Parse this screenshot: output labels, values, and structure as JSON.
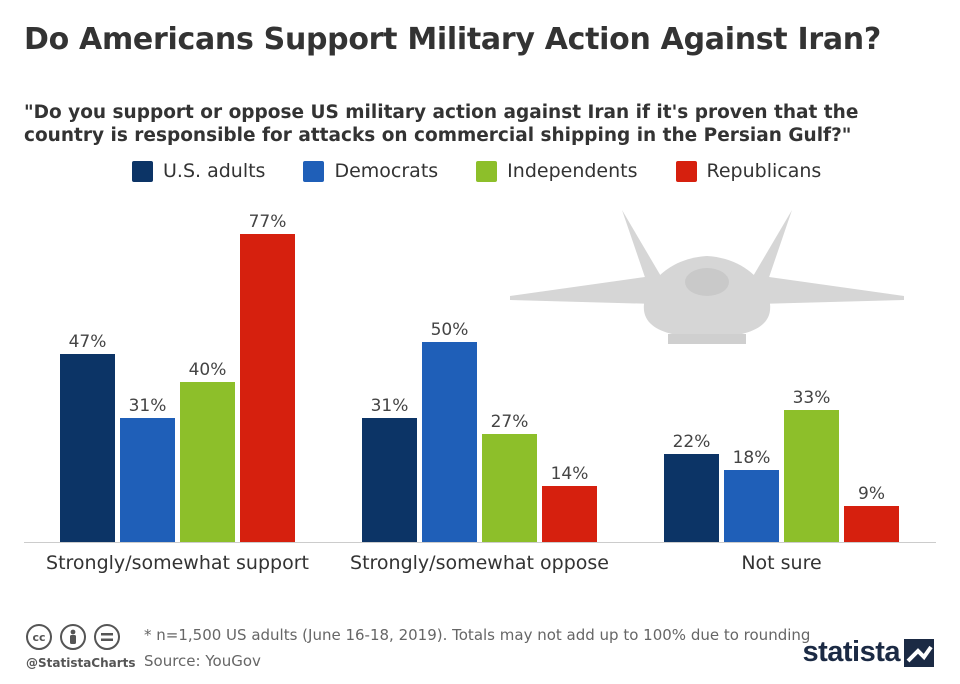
{
  "title": "Do Americans Support Military Action Against Iran?",
  "subtitle": "\"Do you support or oppose US military action against Iran if it's proven that the country is responsible for attacks on commercial shipping in the Persian Gulf?\"",
  "chart_data": {
    "type": "bar",
    "title": "Do Americans Support Military Action Against Iran?",
    "categories": [
      "Strongly/somewhat support",
      "Strongly/somewhat oppose",
      "Not sure"
    ],
    "series": [
      {
        "name": "U.S. adults",
        "color": "#0c3466",
        "values": [
          47,
          31,
          22
        ]
      },
      {
        "name": "Democrats",
        "color": "#1f5fb8",
        "values": [
          31,
          50,
          18
        ]
      },
      {
        "name": "Independents",
        "color": "#8dbf2a",
        "values": [
          40,
          27,
          33
        ]
      },
      {
        "name": "Republicans",
        "color": "#d6200e",
        "values": [
          77,
          14,
          9
        ]
      }
    ],
    "value_suffix": "%",
    "ylim": [
      0,
      80
    ],
    "grid": false,
    "legend": "top",
    "xlabel": "",
    "ylabel": ""
  },
  "footer": {
    "note": "* n=1,500 US adults (June 16-18, 2019). Totals may not add up to 100% due to rounding",
    "source": "Source: YouGov",
    "handle": "@StatistaCharts",
    "logo": "statista"
  },
  "icons": [
    "cc-icon",
    "by-icon",
    "nd-icon",
    "fighter-jet-icon"
  ]
}
